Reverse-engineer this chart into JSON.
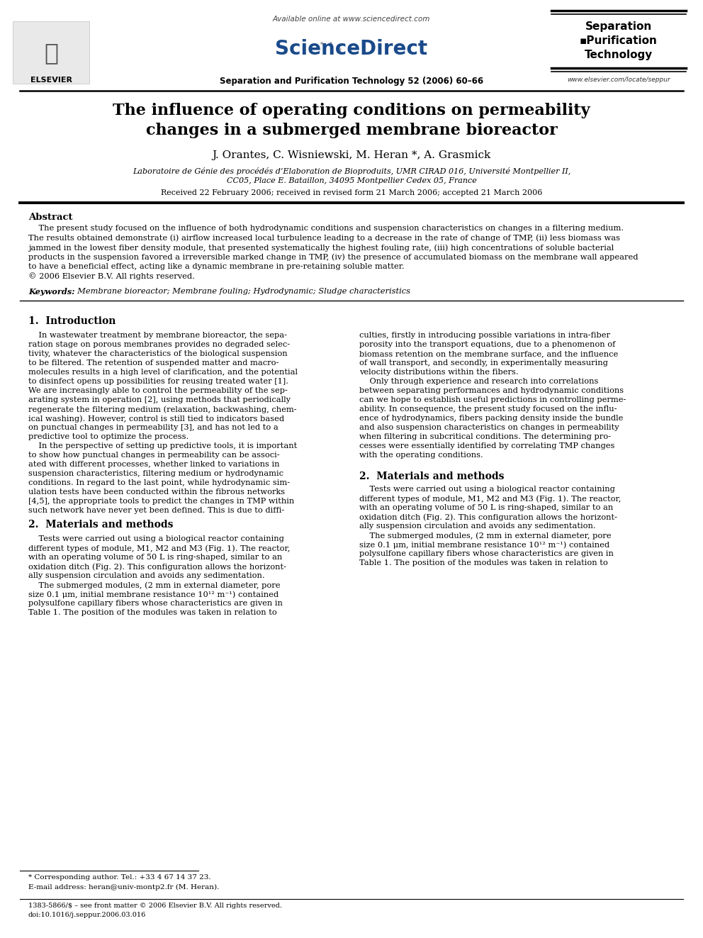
{
  "bg_color": "#ffffff",
  "available_online": "Available online at www.sciencedirect.com",
  "journal_line": "Separation and Purification Technology 52 (2006) 60–66",
  "website": "www.elsevier.com/locate/seppur",
  "title": "The influence of operating conditions on permeability\nchanges in a submerged membrane bioreactor",
  "authors": "J. Orantes, C. Wisniewski, M. Heran *, A. Grasmick",
  "affiliation1": "Laboratoire de Génie des procédés d’Elaboration de Bioproduits, UMR CIRAD 016, Université Montpellier II,",
  "affiliation2": "CC05, Place E. Bataillon, 34095 Montpellier Cedex 05, France",
  "received": "Received 22 February 2006; received in revised form 21 March 2006; accepted 21 March 2006",
  "abstract_title": "Abstract",
  "abstract_lines": [
    "    The present study focused on the influence of both hydrodynamic conditions and suspension characteristics on changes in a filtering medium.",
    "The results obtained demonstrate (i) airflow increased local turbulence leading to a decrease in the rate of change of TMP, (ii) less biomass was",
    "jammed in the lowest fiber density module, that presented systematically the highest fouling rate, (iii) high concentrations of soluble bacterial",
    "products in the suspension favored a irreversible marked change in TMP, (iv) the presence of accumulated biomass on the membrane wall appeared",
    "to have a beneficial effect, acting like a dynamic membrane in pre-retaining soluble matter.",
    "© 2006 Elsevier B.V. All rights reserved."
  ],
  "keywords_label": "Keywords:",
  "keywords_text": "  Membrane bioreactor; Membrane fouling; Hydrodynamic; Sludge characteristics",
  "section1_title": "1.  Introduction",
  "col1_s1_lines": [
    "    In wastewater treatment by membrane bioreactor, the sepa-",
    "ration stage on porous membranes provides no degraded selec-",
    "tivity, whatever the characteristics of the biological suspension",
    "to be filtered. The retention of suspended matter and macro-",
    "molecules results in a high level of clarification, and the potential",
    "to disinfect opens up possibilities for reusing treated water [1].",
    "We are increasingly able to control the permeability of the sep-",
    "arating system in operation [2], using methods that periodically",
    "regenerate the filtering medium (relaxation, backwashing, chem-",
    "ical washing). However, control is still tied to indicators based",
    "on punctual changes in permeability [3], and has not led to a",
    "predictive tool to optimize the process.",
    "    In the perspective of setting up predictive tools, it is important",
    "to show how punctual changes in permeability can be associ-",
    "ated with different processes, whether linked to variations in",
    "suspension characteristics, filtering medium or hydrodynamic",
    "conditions. In regard to the last point, while hydrodynamic sim-",
    "ulation tests have been conducted within the fibrous networks",
    "[4,5], the appropriate tools to predict the changes in TMP within",
    "such network have never yet been defined. This is due to diffi-"
  ],
  "col2_s1_lines": [
    "culties, firstly in introducing possible variations in intra-fiber",
    "porosity into the transport equations, due to a phenomenon of",
    "biomass retention on the membrane surface, and the influence",
    "of wall transport, and secondly, in experimentally measuring",
    "velocity distributions within the fibers.",
    "    Only through experience and research into correlations",
    "between separating performances and hydrodynamic conditions",
    "can we hope to establish useful predictions in controlling perme-",
    "ability. In consequence, the present study focused on the influ-",
    "ence of hydrodynamics, fibers packing density inside the bundle",
    "and also suspension characteristics on changes in permeability",
    "when filtering in subcritical conditions. The determining pro-",
    "cesses were essentially identified by correlating TMP changes",
    "with the operating conditions."
  ],
  "section2_title": "2.  Materials and methods",
  "col1_s2_lines": [
    "    Tests were carried out using a biological reactor containing",
    "different types of module, M1, M2 and M3 (Fig. 1). The reactor,",
    "with an operating volume of 50 L is ring-shaped, similar to an",
    "oxidation ditch (Fig. 2). This configuration allows the horizont-",
    "ally suspension circulation and avoids any sedimentation.",
    "    The submerged modules, (2 mm in external diameter, pore",
    "size 0.1 μm, initial membrane resistance 10¹² m⁻¹) contained",
    "polysulfone capillary fibers whose characteristics are given in",
    "Table 1. The position of the modules was taken in relation to"
  ],
  "col2_s2_lines": [
    "    Tests were carried out using a biological reactor containing",
    "different types of module, M1, M2 and M3 (Fig. 1). The reactor,",
    "with an operating volume of 50 L is ring-shaped, similar to an",
    "oxidation ditch (Fig. 2). This configuration allows the horizont-",
    "ally suspension circulation and avoids any sedimentation.",
    "    The submerged modules, (2 mm in external diameter, pore",
    "size 0.1 μm, initial membrane resistance 10¹² m⁻¹) contained",
    "polysulfone capillary fibers whose characteristics are given in",
    "Table 1. The position of the modules was taken in relation to"
  ],
  "footnote_star": "* Corresponding author. Tel.: +33 4 67 14 37 23.",
  "footnote_email": "E-mail address: heran@univ-montp2.fr (M. Heran).",
  "footnote_issn": "1383-5866/$ – see front matter © 2006 Elsevier B.V. All rights reserved.",
  "footnote_doi": "doi:10.1016/j.seppur.2006.03.016"
}
